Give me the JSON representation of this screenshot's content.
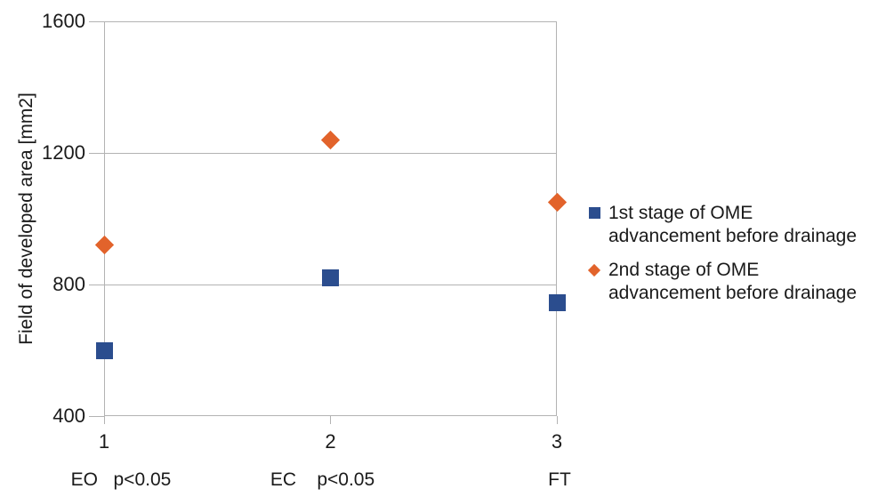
{
  "chart_data": {
    "type": "scatter",
    "title": "",
    "ylabel": "Field of developed area [mm2]",
    "xlabel": "",
    "ylim": [
      400,
      1600
    ],
    "yticks": [
      1600,
      1200,
      800,
      400
    ],
    "x": [
      1,
      2,
      3
    ],
    "xticks": [
      "1",
      "2",
      "3"
    ],
    "group_labels": [
      "EO   p<0.05",
      "EC    p<0.05",
      "FT"
    ],
    "grid": "horizontal-only",
    "legend_position": "right-middle",
    "series": [
      {
        "name": "1st stage of OME advancement before drainage",
        "marker": "square",
        "color": "#2B4D8E",
        "values": [
          600,
          820,
          745
        ]
      },
      {
        "name": "2nd stage of OME advancement before drainage",
        "marker": "diamond",
        "color": "#E2632B",
        "values": [
          920,
          1240,
          1050
        ]
      }
    ]
  },
  "legend": {
    "items": [
      {
        "line1": "1st stage of OME",
        "line2": "advancement before drainage",
        "marker": "square",
        "color": "#2B4D8E"
      },
      {
        "line1": "2nd stage of OME",
        "line2": "advancement before drainage",
        "marker": "diamond",
        "color": "#E2632B"
      }
    ]
  },
  "colors": {
    "series1": "#2B4D8E",
    "series2": "#E2632B",
    "gridline": "#B3B3B3",
    "text": "#1A1A1A",
    "background": "#FFFFFF"
  }
}
